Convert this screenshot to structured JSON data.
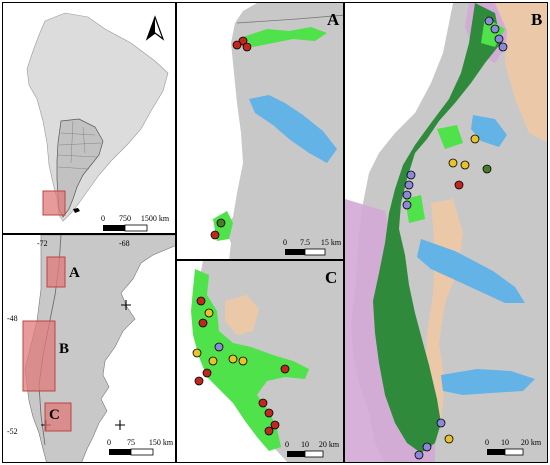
{
  "overview": {
    "north_arrow_letter": "N",
    "scale": {
      "zero": "0",
      "mid": "750",
      "end": "1500 km"
    }
  },
  "patagonia": {
    "lon_labels": [
      "-72",
      "-68"
    ],
    "lat_labels": [
      "-48",
      "-52"
    ],
    "box_labels": [
      "A",
      "B",
      "C"
    ],
    "scale": {
      "zero": "0",
      "mid": "75",
      "end": "150 km"
    }
  },
  "panel_a": {
    "letter": "A",
    "scale": {
      "zero": "0",
      "mid": "7.5",
      "end": "15 km"
    }
  },
  "panel_c": {
    "letter": "C",
    "scale": {
      "zero": "0",
      "mid": "10",
      "end": "20 km"
    }
  },
  "panel_b": {
    "letter": "B",
    "scale": {
      "zero": "0",
      "mid": "10",
      "end": "20 km"
    }
  },
  "colors": {
    "land": "#c8c8c8",
    "ocean": "#ffffff",
    "forest_dark": "#2f8a3b",
    "forest_light": "#4fe24a",
    "lake": "#63b3e6",
    "steppe": "#ebc9a8",
    "chile_zone": "#d4a8d6",
    "highlight_box": "#e07a7a",
    "point_red": "#c0281d",
    "point_yellow": "#e8c22a",
    "point_purple": "#8d88d8",
    "point_green": "#4a7a2a"
  }
}
